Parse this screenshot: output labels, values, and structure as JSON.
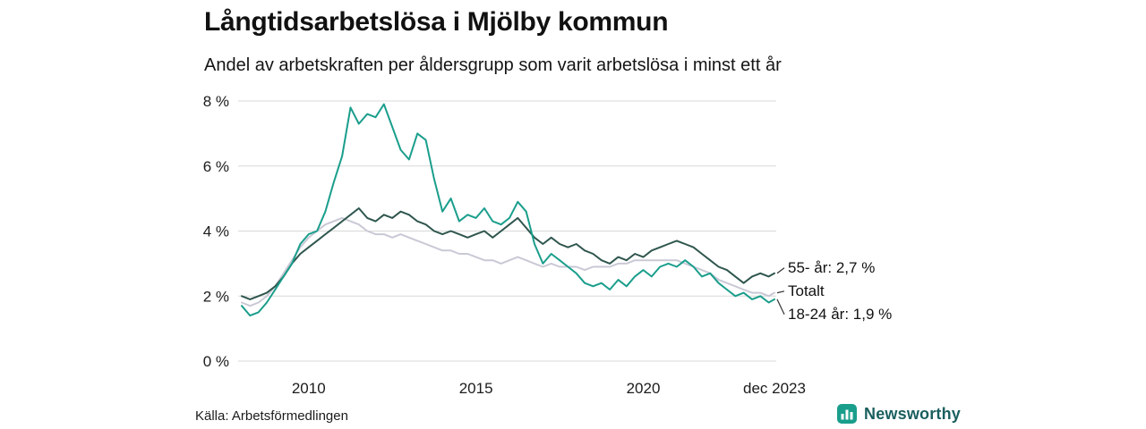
{
  "page": {
    "title": "Långtidsarbetslösa i Mjölby kommun",
    "subtitle": "Andel av arbetskraften per åldersgrupp som varit arbetslösa i minst ett år",
    "source": "Källa: Arbetsförmedlingen",
    "brand": {
      "name": "Newsworthy",
      "icon": "bar-chart-icon",
      "icon_color": "#1a9e8c",
      "text_color": "#1a5f5e"
    }
  },
  "chart_data": {
    "type": "line",
    "title": "Långtidsarbetslösa i Mjölby kommun",
    "subtitle": "Andel av arbetskraften per åldersgrupp som varit arbetslösa i minst ett år",
    "xlabel": "",
    "ylabel": "",
    "grid": "horizontal",
    "legend_position": "end-of-line-labels",
    "x_range": [
      2008,
      2023.92
    ],
    "y_range": [
      0,
      8
    ],
    "y_ticks": [
      {
        "value": 0,
        "label": "0 %"
      },
      {
        "value": 2,
        "label": "2 %"
      },
      {
        "value": 4,
        "label": "4 %"
      },
      {
        "value": 6,
        "label": "6 %"
      },
      {
        "value": 8,
        "label": "8 %"
      }
    ],
    "x_ticks": [
      {
        "value": 2010,
        "label": "2010"
      },
      {
        "value": 2015,
        "label": "2015"
      },
      {
        "value": 2020,
        "label": "2020"
      },
      {
        "value": 2023.92,
        "label": "dec 2023"
      }
    ],
    "x": [
      2008,
      2008.25,
      2008.5,
      2008.75,
      2009,
      2009.25,
      2009.5,
      2009.75,
      2010,
      2010.25,
      2010.5,
      2010.75,
      2011,
      2011.25,
      2011.5,
      2011.75,
      2012,
      2012.25,
      2012.5,
      2012.75,
      2013,
      2013.25,
      2013.5,
      2013.75,
      2014,
      2014.25,
      2014.5,
      2014.75,
      2015,
      2015.25,
      2015.5,
      2015.75,
      2016,
      2016.25,
      2016.5,
      2016.75,
      2017,
      2017.25,
      2017.5,
      2017.75,
      2018,
      2018.25,
      2018.5,
      2018.75,
      2019,
      2019.25,
      2019.5,
      2019.75,
      2020,
      2020.25,
      2020.5,
      2020.75,
      2021,
      2021.25,
      2021.5,
      2021.75,
      2022,
      2022.25,
      2022.5,
      2022.75,
      2023,
      2023.25,
      2023.5,
      2023.75,
      2023.92
    ],
    "series": [
      {
        "name": "55- år",
        "end_label": "55- år: 2,7 %",
        "end_value": "2,7 %",
        "color": "#2f564e",
        "values": [
          2.0,
          1.9,
          2.0,
          2.1,
          2.3,
          2.6,
          3.0,
          3.3,
          3.5,
          3.7,
          3.9,
          4.1,
          4.3,
          4.5,
          4.7,
          4.4,
          4.3,
          4.5,
          4.4,
          4.6,
          4.5,
          4.3,
          4.2,
          4.0,
          3.9,
          4.0,
          3.9,
          3.8,
          3.9,
          4.0,
          3.8,
          4.0,
          4.2,
          4.4,
          4.1,
          3.8,
          3.6,
          3.8,
          3.6,
          3.5,
          3.6,
          3.4,
          3.3,
          3.1,
          3.0,
          3.2,
          3.1,
          3.3,
          3.2,
          3.4,
          3.5,
          3.6,
          3.7,
          3.6,
          3.5,
          3.3,
          3.1,
          2.9,
          2.8,
          2.6,
          2.4,
          2.6,
          2.7,
          2.6,
          2.7
        ]
      },
      {
        "name": "Totalt",
        "end_label": "Totalt",
        "end_value": "",
        "color": "#c9c9d6",
        "values": [
          1.8,
          1.7,
          1.8,
          2.0,
          2.3,
          2.7,
          3.1,
          3.5,
          3.8,
          4.0,
          4.2,
          4.3,
          4.4,
          4.3,
          4.2,
          4.0,
          3.9,
          3.9,
          3.8,
          3.9,
          3.8,
          3.7,
          3.6,
          3.5,
          3.4,
          3.4,
          3.3,
          3.3,
          3.2,
          3.1,
          3.1,
          3.0,
          3.1,
          3.2,
          3.1,
          3.0,
          2.9,
          3.0,
          2.9,
          2.9,
          2.9,
          2.8,
          2.9,
          2.9,
          2.9,
          3.0,
          3.0,
          3.1,
          3.1,
          3.1,
          3.1,
          3.1,
          3.1,
          3.0,
          2.9,
          2.8,
          2.7,
          2.5,
          2.4,
          2.3,
          2.2,
          2.1,
          2.1,
          2.0,
          2.1
        ]
      },
      {
        "name": "18-24 år",
        "end_label": "18-24 år: 1,9 %",
        "end_value": "1,9 %",
        "color": "#1a9e8c",
        "values": [
          1.7,
          1.4,
          1.5,
          1.8,
          2.2,
          2.6,
          3.0,
          3.6,
          3.9,
          4.0,
          4.6,
          5.5,
          6.3,
          7.8,
          7.3,
          7.6,
          7.5,
          7.9,
          7.2,
          6.5,
          6.2,
          7.0,
          6.8,
          5.6,
          4.6,
          5.0,
          4.3,
          4.5,
          4.4,
          4.7,
          4.3,
          4.2,
          4.4,
          4.9,
          4.6,
          3.6,
          3.0,
          3.3,
          3.1,
          2.9,
          2.7,
          2.4,
          2.3,
          2.4,
          2.2,
          2.5,
          2.3,
          2.6,
          2.8,
          2.6,
          2.9,
          3.0,
          2.9,
          3.1,
          2.9,
          2.6,
          2.7,
          2.4,
          2.2,
          2.0,
          2.1,
          1.9,
          2.0,
          1.8,
          1.9
        ]
      }
    ]
  }
}
